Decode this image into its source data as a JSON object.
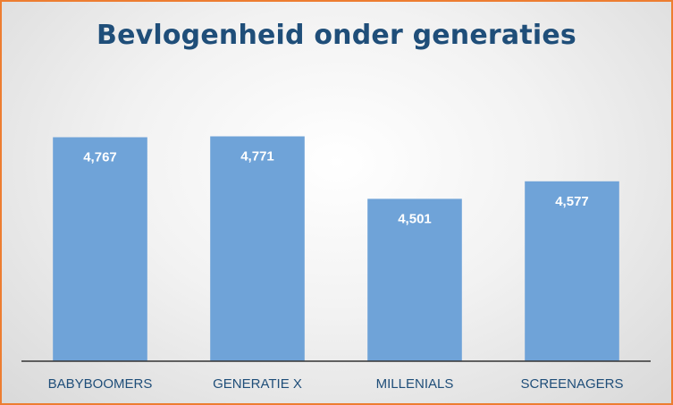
{
  "chart_data": {
    "type": "bar",
    "title": "Bevlogenheid onder generaties",
    "categories": [
      "BABYBOOMERS",
      "GENERATIE X",
      "MILLENIALS",
      "SCREENAGERS"
    ],
    "values": [
      4.767,
      4.771,
      4.501,
      4.577
    ],
    "value_labels": [
      "4,767",
      "4,771",
      "4,501",
      "4,577"
    ],
    "xlabel": "",
    "ylabel": "",
    "ylim": [
      3.8,
      4.8
    ],
    "grid": false,
    "legend": "none"
  },
  "colors": {
    "bar": "#6FA3D8",
    "title": "#1F4E79",
    "border": "#ED7D31",
    "value_label": "#ffffff",
    "category_label": "#1F4E79"
  }
}
